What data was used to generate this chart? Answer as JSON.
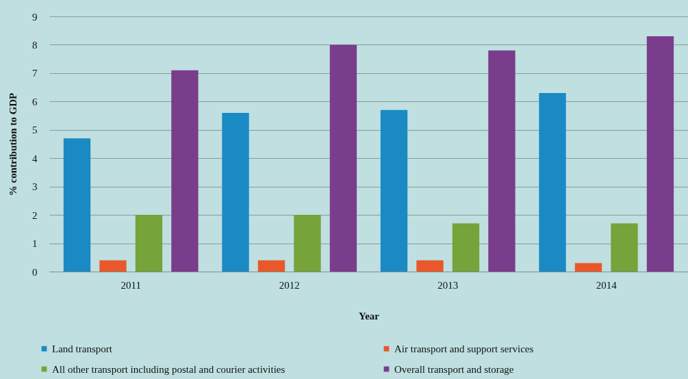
{
  "chart_data": {
    "type": "bar",
    "xlabel": "Year",
    "ylabel": "% contribution to GDP",
    "categories": [
      "2011",
      "2012",
      "2013",
      "2014"
    ],
    "series": [
      {
        "name": "Land transport",
        "color": "#1a8ac4",
        "values": [
          4.7,
          5.6,
          5.7,
          6.3
        ]
      },
      {
        "name": "Air transport and support services",
        "color": "#e8582a",
        "values": [
          0.4,
          0.4,
          0.4,
          0.3
        ]
      },
      {
        "name": "All other transport including postal and courier activities",
        "color": "#76a33a",
        "values": [
          2.0,
          2.0,
          1.7,
          1.7
        ]
      },
      {
        "name": "Overall transport and storage",
        "color": "#7a3d8c",
        "values": [
          7.1,
          8.0,
          7.8,
          8.3
        ]
      }
    ],
    "ylim": [
      0,
      9
    ],
    "yticks": [
      0,
      1,
      2,
      3,
      4,
      5,
      6,
      7,
      8,
      9
    ],
    "grid": "y",
    "legend": "bottom"
  }
}
